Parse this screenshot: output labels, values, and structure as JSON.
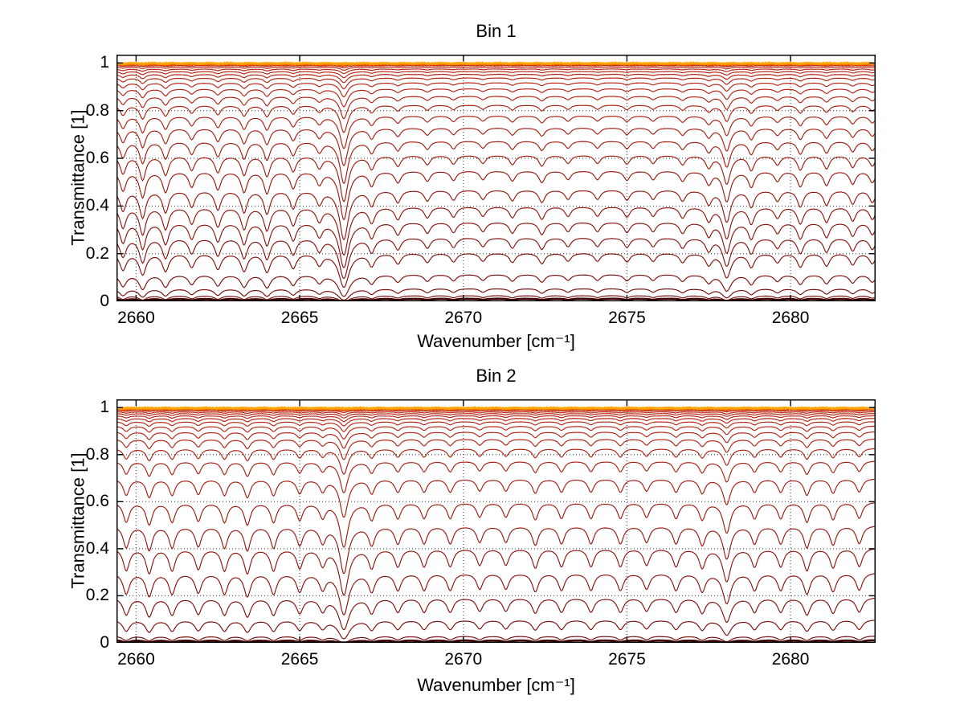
{
  "figure": {
    "background": "#ffffff",
    "axis_color": "#000000",
    "grid_style": "dotted",
    "curve_color_low": "#730a0a",
    "curve_color_high": "#b92614",
    "bottom_curve_color": "#400000",
    "top_colors": [
      "#d94400",
      "#ff7800",
      "#ffa300"
    ]
  },
  "chart_data": [
    {
      "type": "line",
      "title": "Bin 1",
      "xlabel": "Wavenumber [cm⁻¹]",
      "ylabel": "Transmittance [1]",
      "xlim": [
        2659.4,
        2682.6
      ],
      "ylim": [
        0,
        1.035
      ],
      "xticks": [
        2660,
        2665,
        2670,
        2675,
        2680
      ],
      "yticks": [
        0,
        0.2,
        0.4,
        0.6,
        0.8,
        1
      ],
      "grid": true,
      "legend": null,
      "default_line_halfwidth": 0.11,
      "baselines": [
        0.012,
        0.025,
        0.055,
        0.115,
        0.205,
        0.27,
        0.335,
        0.4,
        0.47,
        0.55,
        0.615,
        0.675,
        0.73,
        0.78,
        0.825,
        0.862,
        0.893,
        0.918,
        0.938,
        0.953,
        0.965,
        0.975,
        0.983,
        0.989,
        0.993,
        0.996,
        0.9985
      ],
      "absorption_lines": [
        [
          2659.6,
          0.28
        ],
        [
          2660.2,
          0.38
        ],
        [
          2660.9,
          0.3
        ],
        [
          2661.7,
          0.22
        ],
        [
          2662.5,
          0.26
        ],
        [
          2663.3,
          0.3
        ],
        [
          2664.0,
          0.32
        ],
        [
          2664.8,
          0.24
        ],
        [
          2665.6,
          0.18
        ],
        [
          2666.35,
          0.78,
          0.14
        ],
        [
          2667.2,
          0.2
        ],
        [
          2668.0,
          0.16
        ],
        [
          2668.9,
          0.14
        ],
        [
          2669.7,
          0.13
        ],
        [
          2670.6,
          0.12
        ],
        [
          2671.5,
          0.14
        ],
        [
          2672.4,
          0.16
        ],
        [
          2673.2,
          0.12
        ],
        [
          2674.1,
          0.12
        ],
        [
          2675.0,
          0.13
        ],
        [
          2675.8,
          0.12
        ],
        [
          2676.7,
          0.14
        ],
        [
          2677.5,
          0.18
        ],
        [
          2678.05,
          0.45,
          0.13
        ],
        [
          2678.8,
          0.22
        ],
        [
          2679.6,
          0.14
        ],
        [
          2680.3,
          0.22
        ],
        [
          2681.1,
          0.2
        ],
        [
          2681.9,
          0.18
        ],
        [
          2682.5,
          0.16
        ]
      ]
    },
    {
      "type": "line",
      "title": "Bin 2",
      "xlabel": "Wavenumber [cm⁻¹]",
      "ylabel": "Transmittance [1]",
      "xlim": [
        2659.4,
        2682.6
      ],
      "ylim": [
        0,
        1.035
      ],
      "xticks": [
        2660,
        2665,
        2670,
        2675,
        2680
      ],
      "yticks": [
        0,
        0.2,
        0.4,
        0.6,
        0.8,
        1
      ],
      "grid": true,
      "legend": null,
      "default_line_halfwidth": 0.11,
      "baselines": [
        0.012,
        0.03,
        0.1,
        0.195,
        0.3,
        0.405,
        0.5,
        0.6,
        0.7,
        0.775,
        0.828,
        0.868,
        0.898,
        0.922,
        0.941,
        0.955,
        0.966,
        0.975,
        0.982,
        0.988,
        0.992,
        0.9955,
        0.998
      ],
      "absorption_lines": [
        [
          2659.7,
          0.3
        ],
        [
          2660.4,
          0.34
        ],
        [
          2661.1,
          0.3
        ],
        [
          2661.9,
          0.28
        ],
        [
          2662.7,
          0.3
        ],
        [
          2663.4,
          0.34
        ],
        [
          2664.2,
          0.3
        ],
        [
          2665.0,
          0.26
        ],
        [
          2665.7,
          0.22
        ],
        [
          2666.35,
          0.75,
          0.14
        ],
        [
          2667.2,
          0.26
        ],
        [
          2668.0,
          0.24
        ],
        [
          2668.8,
          0.24
        ],
        [
          2669.6,
          0.24
        ],
        [
          2670.5,
          0.22
        ],
        [
          2671.3,
          0.22
        ],
        [
          2672.2,
          0.26
        ],
        [
          2673.0,
          0.24
        ],
        [
          2673.9,
          0.24
        ],
        [
          2674.8,
          0.24
        ],
        [
          2675.6,
          0.22
        ],
        [
          2676.5,
          0.24
        ],
        [
          2677.3,
          0.26
        ],
        [
          2678.05,
          0.48,
          0.13
        ],
        [
          2678.9,
          0.24
        ],
        [
          2679.7,
          0.24
        ],
        [
          2680.5,
          0.3
        ],
        [
          2681.3,
          0.26
        ],
        [
          2682.1,
          0.24
        ]
      ]
    }
  ]
}
